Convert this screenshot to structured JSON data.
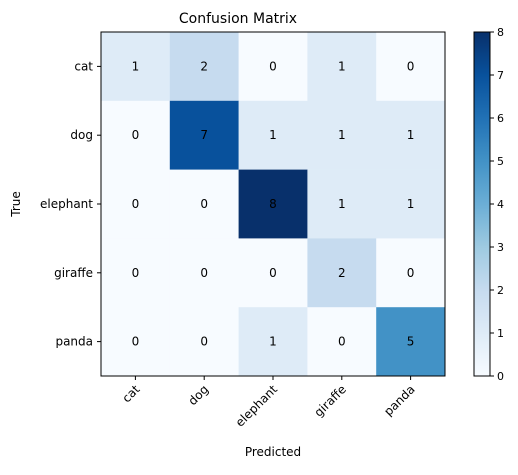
{
  "chart_data": {
    "type": "heatmap",
    "title": "Confusion Matrix",
    "xlabel": "Predicted",
    "ylabel": "True",
    "x_categories": [
      "cat",
      "dog",
      "elephant",
      "giraffe",
      "panda"
    ],
    "y_categories": [
      "cat",
      "dog",
      "elephant",
      "giraffe",
      "panda"
    ],
    "values": [
      [
        1,
        2,
        0,
        1,
        0
      ],
      [
        0,
        7,
        1,
        1,
        1
      ],
      [
        0,
        0,
        8,
        1,
        1
      ],
      [
        0,
        0,
        0,
        2,
        0
      ],
      [
        0,
        0,
        1,
        0,
        5
      ]
    ],
    "colormap": "Blues",
    "colormap_stops": [
      "#f7fbff",
      "#deebf7",
      "#c6dbef",
      "#9ecae1",
      "#6baed6",
      "#4292c6",
      "#2171b5",
      "#08519c",
      "#08306b"
    ],
    "vmin": 0,
    "vmax": 8,
    "colorbar_ticks": [
      0,
      1,
      2,
      3,
      4,
      5,
      6,
      7,
      8
    ],
    "x_tick_rotation_deg": 45,
    "grid": false
  }
}
